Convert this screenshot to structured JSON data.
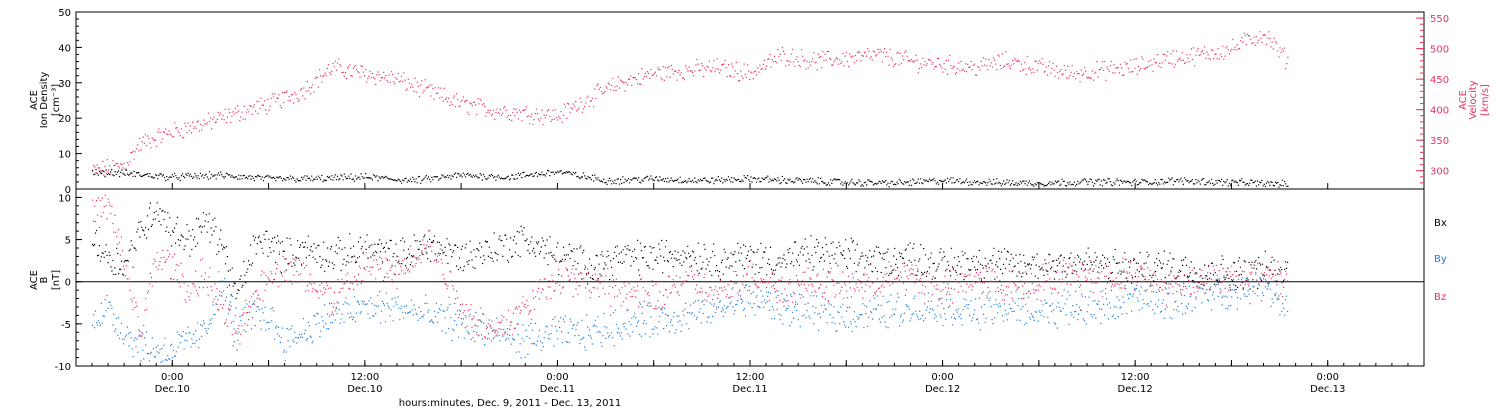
{
  "colors": {
    "black": "#000000",
    "blue": "#1d7fd8",
    "pink": "#e8335f"
  },
  "chart_data": [
    {
      "type": "scatter",
      "panel": "top",
      "ylabel_left": [
        "ACE",
        "Ion Density",
        "[cm⁻³]"
      ],
      "ylabel_right": [
        "ACE",
        "Velocity",
        "[km/s]"
      ],
      "ylim_left": [
        0,
        50
      ],
      "ylim_right": [
        270,
        560
      ],
      "yticks_left": [
        "0",
        "10",
        "20",
        "30",
        "40",
        "50"
      ],
      "yticks_right": [
        "300",
        "350",
        "400",
        "450",
        "500",
        "550"
      ],
      "x_hours": [
        -6,
        0,
        6,
        12,
        18,
        24,
        30,
        36,
        42,
        48,
        54,
        60,
        66,
        72,
        78
      ],
      "series": [
        {
          "axis": "left",
          "color": "pink",
          "x": [
            -5.0,
            -4.0,
            -3.0,
            -2.0,
            0.0,
            2.0,
            4.0,
            6.0,
            8.0,
            10.0,
            12.0,
            14.0,
            16.0,
            18.0,
            20.0,
            22.0,
            24.0,
            26.0,
            28.0,
            30.0,
            32.0,
            34.0,
            36.0,
            38.0,
            40.0,
            42.0,
            44.0,
            46.0,
            48.0,
            50.0,
            52.0,
            54.0,
            56.0,
            58.0,
            60.0,
            62.0,
            64.0,
            66.0,
            67.0,
            68.0,
            69.5
          ],
          "y": [
            300,
            305,
            310,
            345,
            365,
            378,
            395,
            410,
            430,
            470,
            460,
            450,
            430,
            410,
            400,
            395,
            390,
            420,
            445,
            460,
            465,
            470,
            460,
            490,
            480,
            485,
            490,
            480,
            475,
            470,
            480,
            470,
            460,
            465,
            470,
            485,
            490,
            500,
            515,
            525,
            480
          ]
        },
        {
          "axis": "left",
          "color": "black",
          "x": [
            -5.0,
            -3.0,
            0.0,
            3.0,
            6.0,
            9.0,
            12.0,
            15.0,
            18.0,
            21.0,
            24.0,
            27.0,
            30.0,
            33.0,
            36.0,
            39.0,
            42.0,
            45.0,
            48.0,
            51.0,
            54.0,
            57.0,
            60.0,
            63.0,
            66.0,
            69.5
          ],
          "y": [
            5.0,
            4.5,
            3.5,
            4.0,
            3.0,
            3.0,
            3.5,
            2.5,
            4.0,
            3.5,
            5.0,
            2.5,
            3.0,
            2.5,
            3.0,
            2.5,
            2.0,
            1.8,
            2.5,
            2.0,
            1.8,
            2.2,
            2.0,
            2.5,
            2.0,
            1.5
          ]
        }
      ]
    },
    {
      "type": "scatter",
      "panel": "bottom",
      "ylabel": [
        "ACE",
        "B",
        "[nT]"
      ],
      "ylim": [
        -10,
        11
      ],
      "yticks": [
        "-10",
        "-5",
        "0",
        "5",
        "10"
      ],
      "legend": [
        "Bx",
        "By",
        "Bz"
      ],
      "x_hours": [
        -6,
        0,
        6,
        12,
        18,
        24,
        30,
        36,
        42,
        48,
        54,
        60,
        66,
        72,
        78
      ],
      "x_tick_labels": [
        "0:00",
        "12:00",
        "0:00",
        "12:00",
        "0:00",
        "12:00",
        "0:00"
      ],
      "x_tick_dates": [
        "Dec.10",
        "Dec.10",
        "Dec.11",
        "Dec.11",
        "Dec.12",
        "Dec.12",
        "Dec.13"
      ],
      "xlabel": "hours:minutes, Dec.  9, 2011 - Dec. 13, 2011",
      "series": [
        {
          "name": "Bx",
          "color": "black",
          "x": [
            -5.0,
            -4.0,
            -3.0,
            -2.0,
            -1.0,
            0.0,
            1.0,
            2.0,
            3.0,
            4.0,
            5.0,
            6.0,
            7.0,
            8.0,
            10.0,
            12.0,
            14.0,
            16.0,
            18.0,
            20.0,
            22.0,
            24.0,
            26.0,
            28.0,
            30.0,
            32.0,
            34.0,
            36.0,
            38.0,
            40.0,
            42.0,
            44.0,
            46.0,
            48.0,
            50.0,
            52.0,
            54.0,
            56.0,
            58.0,
            60.0,
            62.0,
            64.0,
            66.0,
            68.0,
            69.5
          ],
          "y": [
            5.0,
            3.0,
            2.0,
            6.0,
            9.0,
            6.0,
            5.0,
            7.0,
            5.0,
            -2.0,
            4.0,
            5.0,
            3.0,
            4.0,
            3.0,
            4.0,
            3.0,
            4.5,
            3.0,
            4.0,
            5.0,
            3.0,
            2.0,
            3.0,
            3.0,
            3.5,
            2.5,
            3.0,
            2.5,
            3.5,
            3.0,
            2.5,
            3.0,
            2.0,
            2.5,
            2.0,
            2.0,
            2.5,
            2.0,
            1.5,
            2.0,
            1.5,
            1.0,
            1.5,
            1.0
          ]
        },
        {
          "name": "By",
          "color": "blue",
          "x": [
            -5.0,
            -4.0,
            -3.0,
            -2.0,
            -1.0,
            0.0,
            1.0,
            2.0,
            3.0,
            4.0,
            5.0,
            6.0,
            7.0,
            8.0,
            10.0,
            12.0,
            14.0,
            16.0,
            18.0,
            20.0,
            22.0,
            24.0,
            26.0,
            28.0,
            30.0,
            32.0,
            34.0,
            36.0,
            38.0,
            40.0,
            42.0,
            44.0,
            46.0,
            48.0,
            50.0,
            52.0,
            54.0,
            56.0,
            58.0,
            60.0,
            62.0,
            64.0,
            66.0,
            68.0,
            69.5
          ],
          "y": [
            -4.0,
            -3.0,
            -6.0,
            -7.5,
            -8.0,
            -8.0,
            -7.0,
            -6.0,
            0.0,
            -5.0,
            -4.0,
            -4.0,
            -7.0,
            -6.0,
            -4.0,
            -3.0,
            -3.0,
            -4.0,
            -5.0,
            -6.0,
            -7.0,
            -6.0,
            -6.0,
            -5.0,
            -4.5,
            -4.0,
            -3.0,
            -2.0,
            -3.0,
            -3.5,
            -4.0,
            -3.5,
            -3.0,
            -3.0,
            -3.5,
            -3.0,
            -3.5,
            -3.0,
            -3.0,
            -2.0,
            -2.5,
            -1.5,
            -1.0,
            0.0,
            -3.0
          ]
        },
        {
          "name": "Bz",
          "color": "pink",
          "x": [
            -5.0,
            -4.0,
            -3.0,
            -2.0,
            -1.0,
            0.0,
            1.0,
            2.0,
            3.0,
            4.0,
            5.0,
            6.0,
            7.0,
            8.0,
            10.0,
            12.0,
            14.0,
            16.0,
            18.0,
            20.0,
            22.0,
            24.0,
            26.0,
            28.0,
            30.0,
            32.0,
            34.0,
            36.0,
            38.0,
            40.0,
            42.0,
            44.0,
            46.0,
            48.0,
            50.0,
            52.0,
            54.0,
            56.0,
            58.0,
            60.0,
            62.0,
            64.0,
            66.0,
            68.0,
            69.5
          ],
          "y": [
            8.0,
            9.0,
            2.0,
            -6.0,
            3.0,
            2.0,
            -1.0,
            1.0,
            -3.0,
            -7.0,
            -2.0,
            1.0,
            2.0,
            1.0,
            -2.0,
            2.0,
            1.0,
            5.0,
            -3.0,
            -6.0,
            -3.0,
            1.0,
            0.0,
            -1.0,
            -2.0,
            0.5,
            -2.0,
            1.0,
            -1.0,
            0.0,
            -0.5,
            0.0,
            1.0,
            -1.0,
            0.5,
            -0.5,
            0.0,
            1.0,
            0.5,
            1.0,
            -0.5,
            0.5,
            0.0,
            1.0,
            0.0
          ]
        }
      ]
    }
  ]
}
